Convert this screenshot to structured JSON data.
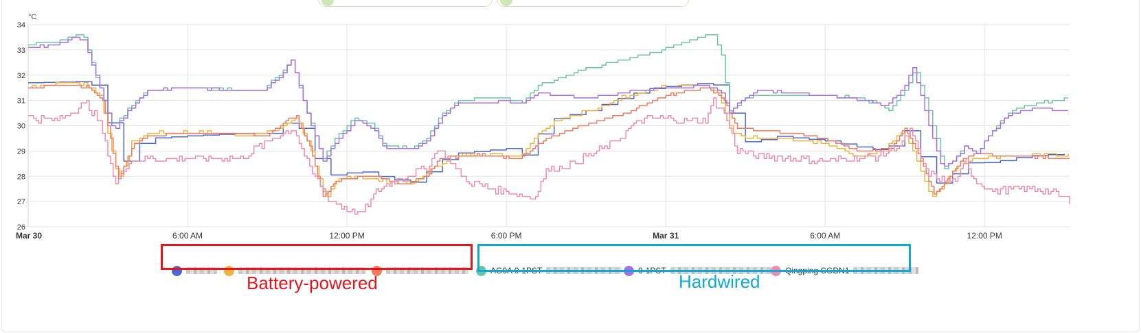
{
  "chart_data": {
    "type": "line",
    "unit_label": "°C",
    "ylim": [
      26,
      34
    ],
    "y_ticks": [
      26,
      27,
      28,
      29,
      30,
      31,
      32,
      33,
      34
    ],
    "x_ticks": [
      {
        "t": 0,
        "label": "Mar 30",
        "bold": true
      },
      {
        "t": 6,
        "label": "6:00 AM",
        "bold": false
      },
      {
        "t": 12,
        "label": "12:00 PM",
        "bold": false
      },
      {
        "t": 18,
        "label": "6:00 PM",
        "bold": false
      },
      {
        "t": 24,
        "label": "Mar 31",
        "bold": true
      },
      {
        "t": 30,
        "label": "6:00 AM",
        "bold": false
      },
      {
        "t": 36,
        "label": "12:00 PM",
        "bold": false
      }
    ],
    "x_range_hours": [
      0,
      39.2
    ],
    "grid": true,
    "series": [
      {
        "color": "#4a67d6",
        "noise": 0,
        "step": 0.6,
        "points": [
          [
            0,
            31.7
          ],
          [
            2,
            31.75
          ],
          [
            2.7,
            31.5
          ],
          [
            3.2,
            29.2
          ],
          [
            3.6,
            28.6
          ],
          [
            3.9,
            29.1
          ],
          [
            4.5,
            29.5
          ],
          [
            6,
            29.6
          ],
          [
            8,
            29.7
          ],
          [
            9,
            29.7
          ],
          [
            9.6,
            30.1
          ],
          [
            9.9,
            30.2
          ],
          [
            10.4,
            29.7
          ],
          [
            11,
            28.2
          ],
          [
            11.4,
            28.05
          ],
          [
            12.5,
            28.2
          ],
          [
            13.5,
            27.9
          ],
          [
            14.5,
            27.75
          ],
          [
            15.5,
            28.6
          ],
          [
            16,
            28.9
          ],
          [
            18,
            29.1
          ],
          [
            18.7,
            28.8
          ],
          [
            19.5,
            30.2
          ],
          [
            21,
            30.6
          ],
          [
            22.5,
            31.2
          ],
          [
            23.5,
            31.5
          ],
          [
            25.5,
            31.7
          ],
          [
            26.2,
            31.5
          ],
          [
            26.6,
            29.5
          ],
          [
            27.2,
            29.3
          ],
          [
            28,
            29.6
          ],
          [
            30,
            29.4
          ],
          [
            31.5,
            29.1
          ],
          [
            32.2,
            29
          ],
          [
            33,
            29.8
          ],
          [
            33.3,
            29.5
          ],
          [
            34,
            27.8
          ],
          [
            34.6,
            27.6
          ],
          [
            35,
            28.6
          ],
          [
            35.6,
            28.5
          ],
          [
            36.5,
            28.6
          ],
          [
            37.5,
            28.8
          ],
          [
            39.2,
            28.9
          ]
        ]
      },
      {
        "color": "#f0b33a",
        "noise": 0.06,
        "step": 0.15,
        "points": [
          [
            0,
            31.55
          ],
          [
            1.5,
            31.7
          ],
          [
            2.1,
            31.7
          ],
          [
            2.7,
            31.2
          ],
          [
            3.4,
            27.8
          ],
          [
            3.9,
            29.3
          ],
          [
            4.5,
            29.7
          ],
          [
            6,
            29.75
          ],
          [
            8,
            29.65
          ],
          [
            9,
            29.7
          ],
          [
            9.6,
            30
          ],
          [
            10.1,
            30.3
          ],
          [
            10.6,
            29.2
          ],
          [
            11.2,
            27
          ],
          [
            11.6,
            27.9
          ],
          [
            12.5,
            28
          ],
          [
            13.5,
            27.8
          ],
          [
            14.5,
            27.7
          ],
          [
            15.5,
            28.5
          ],
          [
            16,
            28.8
          ],
          [
            17.5,
            28.9
          ],
          [
            18.5,
            28.8
          ],
          [
            19.2,
            29.7
          ],
          [
            20,
            30.3
          ],
          [
            21.5,
            30.7
          ],
          [
            22.5,
            31.2
          ],
          [
            23.8,
            31.5
          ],
          [
            25.5,
            31.6
          ],
          [
            26,
            31.2
          ],
          [
            26.5,
            29.7
          ],
          [
            27.2,
            29.5
          ],
          [
            28,
            29.5
          ],
          [
            30,
            29.3
          ],
          [
            31.2,
            28.8
          ],
          [
            32.2,
            29
          ],
          [
            32.9,
            29.8
          ],
          [
            33.4,
            28.8
          ],
          [
            34,
            27.1
          ],
          [
            34.5,
            27.8
          ],
          [
            35,
            28.5
          ],
          [
            35.6,
            28.7
          ],
          [
            37,
            28.8
          ],
          [
            39.2,
            28.9
          ]
        ]
      },
      {
        "color": "#ef7a5e",
        "noise": 0.02,
        "step": 0.1,
        "points": [
          [
            0,
            31.5
          ],
          [
            1,
            31.6
          ],
          [
            2.2,
            31.55
          ],
          [
            2.8,
            31
          ],
          [
            3.4,
            27.9
          ],
          [
            4,
            29.3
          ],
          [
            4.5,
            29.6
          ],
          [
            6,
            29.75
          ],
          [
            8,
            29.7
          ],
          [
            9,
            29.6
          ],
          [
            9.8,
            30.3
          ],
          [
            10.1,
            30.35
          ],
          [
            10.6,
            29.2
          ],
          [
            11.1,
            27.2
          ],
          [
            11.6,
            27.8
          ],
          [
            13,
            28.05
          ],
          [
            14,
            27.65
          ],
          [
            15,
            28
          ],
          [
            15.5,
            28.7
          ],
          [
            17,
            28.85
          ],
          [
            18.5,
            28.7
          ],
          [
            19.5,
            29.5
          ],
          [
            20.5,
            29.9
          ],
          [
            22.5,
            30.5
          ],
          [
            24,
            31.2
          ],
          [
            25.6,
            31.5
          ],
          [
            26.2,
            31
          ],
          [
            26.7,
            29.9
          ],
          [
            28,
            29.8
          ],
          [
            30,
            29.5
          ],
          [
            31.2,
            29
          ],
          [
            32.5,
            29.1
          ],
          [
            33,
            29.9
          ],
          [
            33.5,
            28.9
          ],
          [
            34.1,
            27.3
          ],
          [
            34.6,
            27.9
          ],
          [
            35.1,
            28.6
          ],
          [
            35.6,
            28.9
          ],
          [
            37,
            28.8
          ],
          [
            39.2,
            28.7
          ]
        ]
      },
      {
        "color": "#6dc3a6",
        "noise": 0.03,
        "step": 0.15,
        "points": [
          [
            0,
            33.2
          ],
          [
            1,
            33.3
          ],
          [
            1.8,
            33.6
          ],
          [
            2.1,
            33.5
          ],
          [
            2.6,
            31.8
          ],
          [
            3.2,
            29.9
          ],
          [
            3.7,
            30.6
          ],
          [
            4.5,
            31.4
          ],
          [
            6,
            31.5
          ],
          [
            8,
            31.4
          ],
          [
            8.8,
            31.4
          ],
          [
            9.5,
            32.1
          ],
          [
            9.9,
            32.6
          ],
          [
            10.5,
            30.5
          ],
          [
            11.1,
            28.7
          ],
          [
            11.6,
            29.6
          ],
          [
            12.3,
            30.3
          ],
          [
            13,
            30
          ],
          [
            13.4,
            29.2
          ],
          [
            14.5,
            29.1
          ],
          [
            15,
            29.5
          ],
          [
            15.6,
            30.5
          ],
          [
            16.2,
            31
          ],
          [
            17,
            31.1
          ],
          [
            18,
            31.1
          ],
          [
            18.6,
            30.9
          ],
          [
            19.2,
            31.6
          ],
          [
            20.5,
            32.1
          ],
          [
            22,
            32.5
          ],
          [
            23.5,
            32.9
          ],
          [
            24.7,
            33.3
          ],
          [
            25.5,
            33.55
          ],
          [
            25.8,
            33.6
          ],
          [
            26.1,
            32.8
          ],
          [
            26.4,
            30.6
          ],
          [
            26.8,
            30.9
          ],
          [
            27.2,
            31.2
          ],
          [
            29,
            31.2
          ],
          [
            30,
            31.2
          ],
          [
            31,
            31.1
          ],
          [
            32,
            30.9
          ],
          [
            32.4,
            30.6
          ],
          [
            33,
            31.4
          ],
          [
            33.4,
            32.3
          ],
          [
            34,
            30.2
          ],
          [
            34.5,
            28.3
          ],
          [
            35,
            28.9
          ],
          [
            35.3,
            29.2
          ],
          [
            35.7,
            28.9
          ],
          [
            36.2,
            29.7
          ],
          [
            37,
            30.6
          ],
          [
            38,
            30.9
          ],
          [
            39.2,
            31.1
          ]
        ]
      },
      {
        "color": "#a56ee6",
        "noise": 0.02,
        "step": 0.15,
        "points": [
          [
            0,
            33.1
          ],
          [
            1,
            33.2
          ],
          [
            1.8,
            33.5
          ],
          [
            2.1,
            33.4
          ],
          [
            2.6,
            31.8
          ],
          [
            3.2,
            29.8
          ],
          [
            3.7,
            30.5
          ],
          [
            4.5,
            31.4
          ],
          [
            6,
            31.5
          ],
          [
            8,
            31.4
          ],
          [
            8.8,
            31.35
          ],
          [
            9.5,
            32
          ],
          [
            9.9,
            32.6
          ],
          [
            10.5,
            30.5
          ],
          [
            11.1,
            28.6
          ],
          [
            11.6,
            29.4
          ],
          [
            12.3,
            30.2
          ],
          [
            13,
            29.9
          ],
          [
            13.4,
            29.1
          ],
          [
            14.5,
            29.1
          ],
          [
            15,
            29.4
          ],
          [
            15.6,
            30.4
          ],
          [
            16.2,
            30.9
          ],
          [
            18,
            30.95
          ],
          [
            18.6,
            30.9
          ],
          [
            19.2,
            31.3
          ],
          [
            21,
            31.1
          ],
          [
            23,
            31.4
          ],
          [
            24,
            31.5
          ],
          [
            25.5,
            31.6
          ],
          [
            26.1,
            31.3
          ],
          [
            26.4,
            30.5
          ],
          [
            26.8,
            31
          ],
          [
            27.5,
            31.4
          ],
          [
            30,
            31.2
          ],
          [
            31.5,
            31
          ],
          [
            32.3,
            30.8
          ],
          [
            33,
            31.6
          ],
          [
            33.3,
            32.3
          ],
          [
            33.9,
            30
          ],
          [
            34.4,
            28.3
          ],
          [
            35,
            28.8
          ],
          [
            35.3,
            29.2
          ],
          [
            35.7,
            28.9
          ],
          [
            36.2,
            29.7
          ],
          [
            37,
            30.5
          ],
          [
            38,
            30.7
          ],
          [
            39.2,
            30.6
          ]
        ]
      },
      {
        "color": "#f08bb0",
        "noise": 0.15,
        "step": 0.1,
        "points": [
          [
            0,
            30.3
          ],
          [
            1,
            30.2
          ],
          [
            1.7,
            30.6
          ],
          [
            2.2,
            30.9
          ],
          [
            2.7,
            30.1
          ],
          [
            3.3,
            27.7
          ],
          [
            3.8,
            28.6
          ],
          [
            4.5,
            28.7
          ],
          [
            6,
            28.7
          ],
          [
            8,
            28.7
          ],
          [
            9.2,
            29.5
          ],
          [
            10,
            29.9
          ],
          [
            10.6,
            28.3
          ],
          [
            11.3,
            27.1
          ],
          [
            12,
            26.7
          ],
          [
            12.5,
            26.5
          ],
          [
            13.2,
            27.5
          ],
          [
            14.2,
            28
          ],
          [
            15,
            28.3
          ],
          [
            15.4,
            29.1
          ],
          [
            15.8,
            28.7
          ],
          [
            16.5,
            27.8
          ],
          [
            17.5,
            27.5
          ],
          [
            18.5,
            27.3
          ],
          [
            19,
            27.1
          ],
          [
            19.5,
            28.2
          ],
          [
            20.5,
            28.5
          ],
          [
            22,
            29.3
          ],
          [
            23,
            30.2
          ],
          [
            24,
            30.3
          ],
          [
            24.8,
            30.2
          ],
          [
            25.5,
            30.2
          ],
          [
            25.8,
            31
          ],
          [
            26.2,
            30.5
          ],
          [
            26.7,
            29
          ],
          [
            27.5,
            28.8
          ],
          [
            30,
            28.6
          ],
          [
            32,
            28.8
          ],
          [
            32.8,
            29.2
          ],
          [
            33.2,
            29.8
          ],
          [
            33.8,
            28.2
          ],
          [
            34.5,
            27.8
          ],
          [
            35,
            27.9
          ],
          [
            35.3,
            28.6
          ],
          [
            35.6,
            27.9
          ],
          [
            36.3,
            27.4
          ],
          [
            37,
            27.5
          ],
          [
            38,
            27.5
          ],
          [
            38.5,
            27.4
          ],
          [
            39.2,
            27.05
          ]
        ]
      }
    ]
  },
  "legend": [
    {
      "color": "#4a67d6",
      "label": "",
      "blur_width": 45
    },
    {
      "color": "#f0b33a",
      "label": "",
      "blur_width": 185
    },
    {
      "color": "#ef7a5e",
      "label": "",
      "blur_width": 120
    },
    {
      "color": "#6dc3a6",
      "label": "AG0A 0-1PST",
      "blur_width": 110
    },
    {
      "color": "#a56ee6",
      "label": "0-1PST",
      "blur_width": 150
    },
    {
      "color": "#f08bb0",
      "label": "Qingping CGDN1",
      "blur_width": 95
    }
  ],
  "groups": [
    {
      "label": "Battery-powered",
      "color": "#e8141b"
    },
    {
      "label": "Hardwired",
      "color": "#10a9d6"
    }
  ]
}
